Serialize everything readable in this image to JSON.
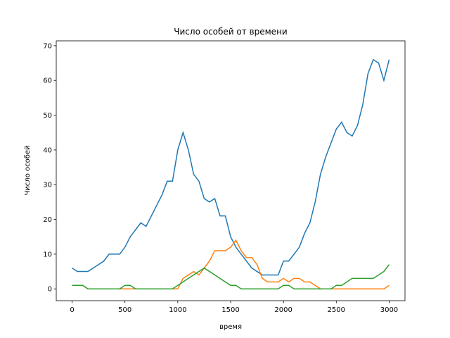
{
  "chart_data": {
    "type": "line",
    "title": "Число особей от времени",
    "xlabel": "время",
    "ylabel": "Число особей",
    "x": [
      0,
      50,
      100,
      150,
      200,
      250,
      300,
      350,
      400,
      450,
      500,
      550,
      600,
      650,
      700,
      750,
      800,
      850,
      900,
      950,
      1000,
      1050,
      1100,
      1150,
      1200,
      1250,
      1300,
      1350,
      1400,
      1450,
      1500,
      1550,
      1600,
      1650,
      1700,
      1750,
      1800,
      1850,
      1900,
      1950,
      2000,
      2050,
      2100,
      2150,
      2200,
      2250,
      2300,
      2350,
      2400,
      2450,
      2500,
      2550,
      2600,
      2650,
      2700,
      2750,
      2800,
      2850,
      2900,
      2950,
      3000
    ],
    "series": [
      {
        "color": "#1f77b4",
        "values": [
          6,
          5,
          5,
          5,
          6,
          7,
          8,
          10,
          10,
          10,
          12,
          15,
          17,
          19,
          18,
          21,
          24,
          27,
          31,
          31,
          40,
          45,
          40,
          33,
          31,
          26,
          25,
          26,
          21,
          21,
          15,
          12,
          10,
          8,
          6,
          5,
          4,
          4,
          4,
          4,
          8,
          8,
          10,
          12,
          16,
          19,
          25,
          33,
          38,
          42,
          46,
          48,
          45,
          44,
          47,
          53,
          62,
          66,
          65,
          60,
          66
        ]
      },
      {
        "color": "#ff7f0e",
        "values": [
          1,
          1,
          1,
          0,
          0,
          0,
          0,
          0,
          0,
          0,
          0,
          0,
          0,
          0,
          0,
          0,
          0,
          0,
          0,
          0,
          0,
          3,
          4,
          5,
          4,
          6,
          8,
          11,
          11,
          11,
          12,
          14,
          11,
          9,
          9,
          7,
          3,
          2,
          2,
          2,
          3,
          2,
          3,
          3,
          2,
          2,
          1,
          0,
          0,
          0,
          0,
          0,
          0,
          0,
          0,
          0,
          0,
          0,
          0,
          0,
          1
        ]
      },
      {
        "color": "#2ca02c",
        "values": [
          1,
          1,
          1,
          0,
          0,
          0,
          0,
          0,
          0,
          0,
          1,
          1,
          0,
          0,
          0,
          0,
          0,
          0,
          0,
          0,
          1,
          2,
          3,
          4,
          5,
          6,
          5,
          4,
          3,
          2,
          1,
          1,
          0,
          0,
          0,
          0,
          0,
          0,
          0,
          0,
          1,
          1,
          0,
          0,
          0,
          0,
          0,
          0,
          0,
          0,
          1,
          1,
          2,
          3,
          3,
          3,
          3,
          3,
          4,
          5,
          7
        ]
      }
    ],
    "xlim": [
      -150,
      3150
    ],
    "ylim": [
      -3.4,
      71.4
    ],
    "xticks": [
      0,
      500,
      1000,
      1500,
      2000,
      2500,
      3000
    ],
    "yticks": [
      0,
      10,
      20,
      30,
      40,
      50,
      60,
      70
    ],
    "grid": false
  }
}
